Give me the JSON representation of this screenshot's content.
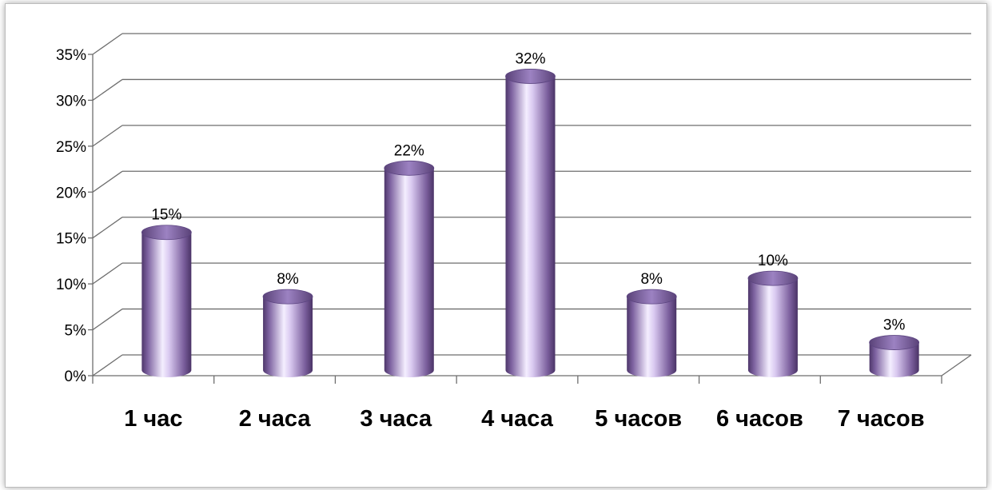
{
  "chart_data": {
    "type": "bar",
    "categories": [
      "1 час",
      "2 часа",
      "3 часа",
      "4 часа",
      "5 часов",
      "6 часов",
      "7 часов"
    ],
    "values": [
      15,
      8,
      22,
      32,
      8,
      10,
      3
    ],
    "data_labels": [
      "15%",
      "8%",
      "22%",
      "32%",
      "8%",
      "10%",
      "3%"
    ],
    "y_ticks": [
      "0%",
      "5%",
      "10%",
      "15%",
      "20%",
      "25%",
      "30%",
      "35%"
    ],
    "ylim": [
      0,
      35
    ],
    "y_unit": "%",
    "grid": true,
    "bar_shape": "cylinder",
    "bar_color": "#8064a2",
    "bar_highlight": "#f3ecff",
    "bar_dark": "#4b3468"
  }
}
